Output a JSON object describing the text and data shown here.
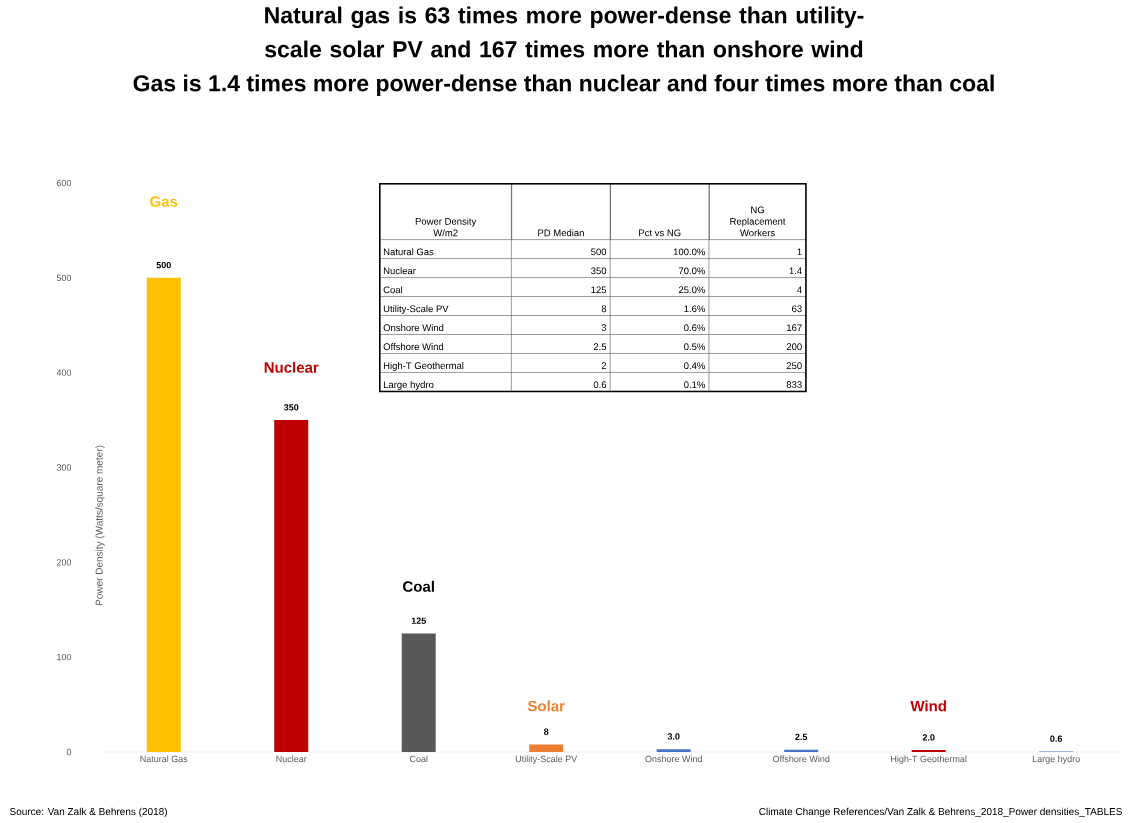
{
  "chart_data": {
    "type": "bar",
    "title": "Natural gas is 63 times more power-dense than utility-scale solar PV and 167 times more than onshore wind",
    "subtitle": "Gas is 1.4 times more power-dense than nuclear and four times more than coal",
    "ylabel": "Power Density (Watts/square meter)",
    "categories": [
      "Natural Gas",
      "Nuclear",
      "Coal",
      "Utility-Scale PV",
      "Onshore Wind",
      "Offshore Wind",
      "High-T Geothermal",
      "Large hydro"
    ],
    "values": [
      500,
      350,
      125,
      8,
      3,
      2.5,
      2,
      0.6
    ],
    "colors": [
      "#ffc000",
      "#c00000",
      "#595959",
      "#ed7d31",
      "#4472c4",
      "#4472c4",
      "#c00000",
      "#4472c4"
    ],
    "value_labels": [
      "500",
      "350",
      "125",
      "8",
      "3.0",
      "2.5",
      "2.0",
      "0.6"
    ],
    "ylim": [
      0,
      600
    ],
    "yticks": [
      0,
      100,
      200,
      300,
      400,
      500,
      600
    ],
    "annotations": [
      "Gas",
      "Nuclear",
      "Coal",
      "Solar",
      "Wind",
      "Power Density W/m2",
      "PD Median",
      "Pct vs NG",
      "NG Replacement Workers",
      "Natural Gas",
      "500",
      "100.0%",
      "1",
      "Nuclear",
      "350",
      "70.0%",
      "1.4",
      "Coal",
      "125",
      "25.0%",
      "4",
      "Utility-Scale PV",
      "8",
      "1.6%",
      "63",
      "Onshore Wind",
      "3",
      "0.6%",
      "167",
      "Offshore Wind",
      "2.5",
      "0.5%",
      "200",
      "High-T Geothermal",
      "2",
      "0.4%",
      "250",
      "Large hydro",
      "0.6",
      "0.1%",
      "833",
      "Source:  Van Zalk & Behrens (2018)",
      "Climate Change References/Van Zalk & Behrens_2018_Power densities_TABLES"
    ]
  }
}
